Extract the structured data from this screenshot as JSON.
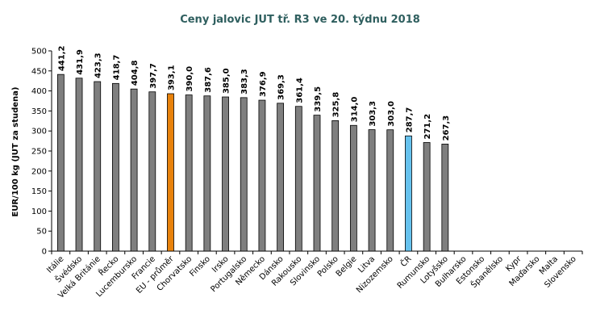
{
  "chart_data": {
    "type": "bar",
    "title": "Ceny jalovic JUT  tř. R3  ve 20. týdnu 2018",
    "xlabel": "",
    "ylabel": "EUR/100 kg (JUT za studena)",
    "ylim": [
      0,
      500
    ],
    "yticks": [
      0,
      50,
      100,
      150,
      200,
      250,
      300,
      350,
      400,
      450,
      500
    ],
    "grid": false,
    "categories": [
      "Itálie",
      "Švédsko",
      "Velká Británie",
      "Řecko",
      "Lucembursko",
      "Francie",
      "EU - průměr",
      "Chorvatsko",
      "Finsko",
      "Irsko",
      "Portugalsko",
      "Německo",
      "Dánsko",
      "Rakousko",
      "Slovinsko",
      "Polsko",
      "Belgie",
      "Litva",
      "Nizozemsko",
      "ČR",
      "Rumunsko",
      "Lotyšsko",
      "Bulharsko",
      "Estonsko",
      "Španělsko",
      "Kypr",
      "Maďarsko",
      "Malta",
      "Slovensko"
    ],
    "values": [
      441.2,
      431.9,
      423.3,
      418.7,
      404.8,
      397.7,
      393.1,
      390.0,
      387.6,
      385.0,
      383.3,
      376.9,
      369.3,
      361.4,
      339.5,
      325.8,
      314.0,
      303.3,
      303.0,
      287.7,
      271.2,
      267.3,
      null,
      null,
      null,
      null,
      null,
      null,
      null
    ],
    "value_labels": [
      "441,2",
      "431,9",
      "423,3",
      "418,7",
      "404,8",
      "397,7",
      "393,1",
      "390,0",
      "387,6",
      "385,0",
      "383,3",
      "376,9",
      "369,3",
      "361,4",
      "339,5",
      "325,8",
      "314,0",
      "303,3",
      "303,0",
      "287,7",
      "271,2",
      "267,3",
      "",
      "",
      "",
      "",
      "",
      "",
      ""
    ],
    "colors": {
      "default": "#7f7f7f",
      "highlight_eu": "#e8820c",
      "highlight_cr": "#66c2ee",
      "bar_outline": "#000000",
      "title": "#2f5f5f"
    },
    "highlight": {
      "EU - průměr": "highlight_eu",
      "ČR": "highlight_cr"
    }
  }
}
